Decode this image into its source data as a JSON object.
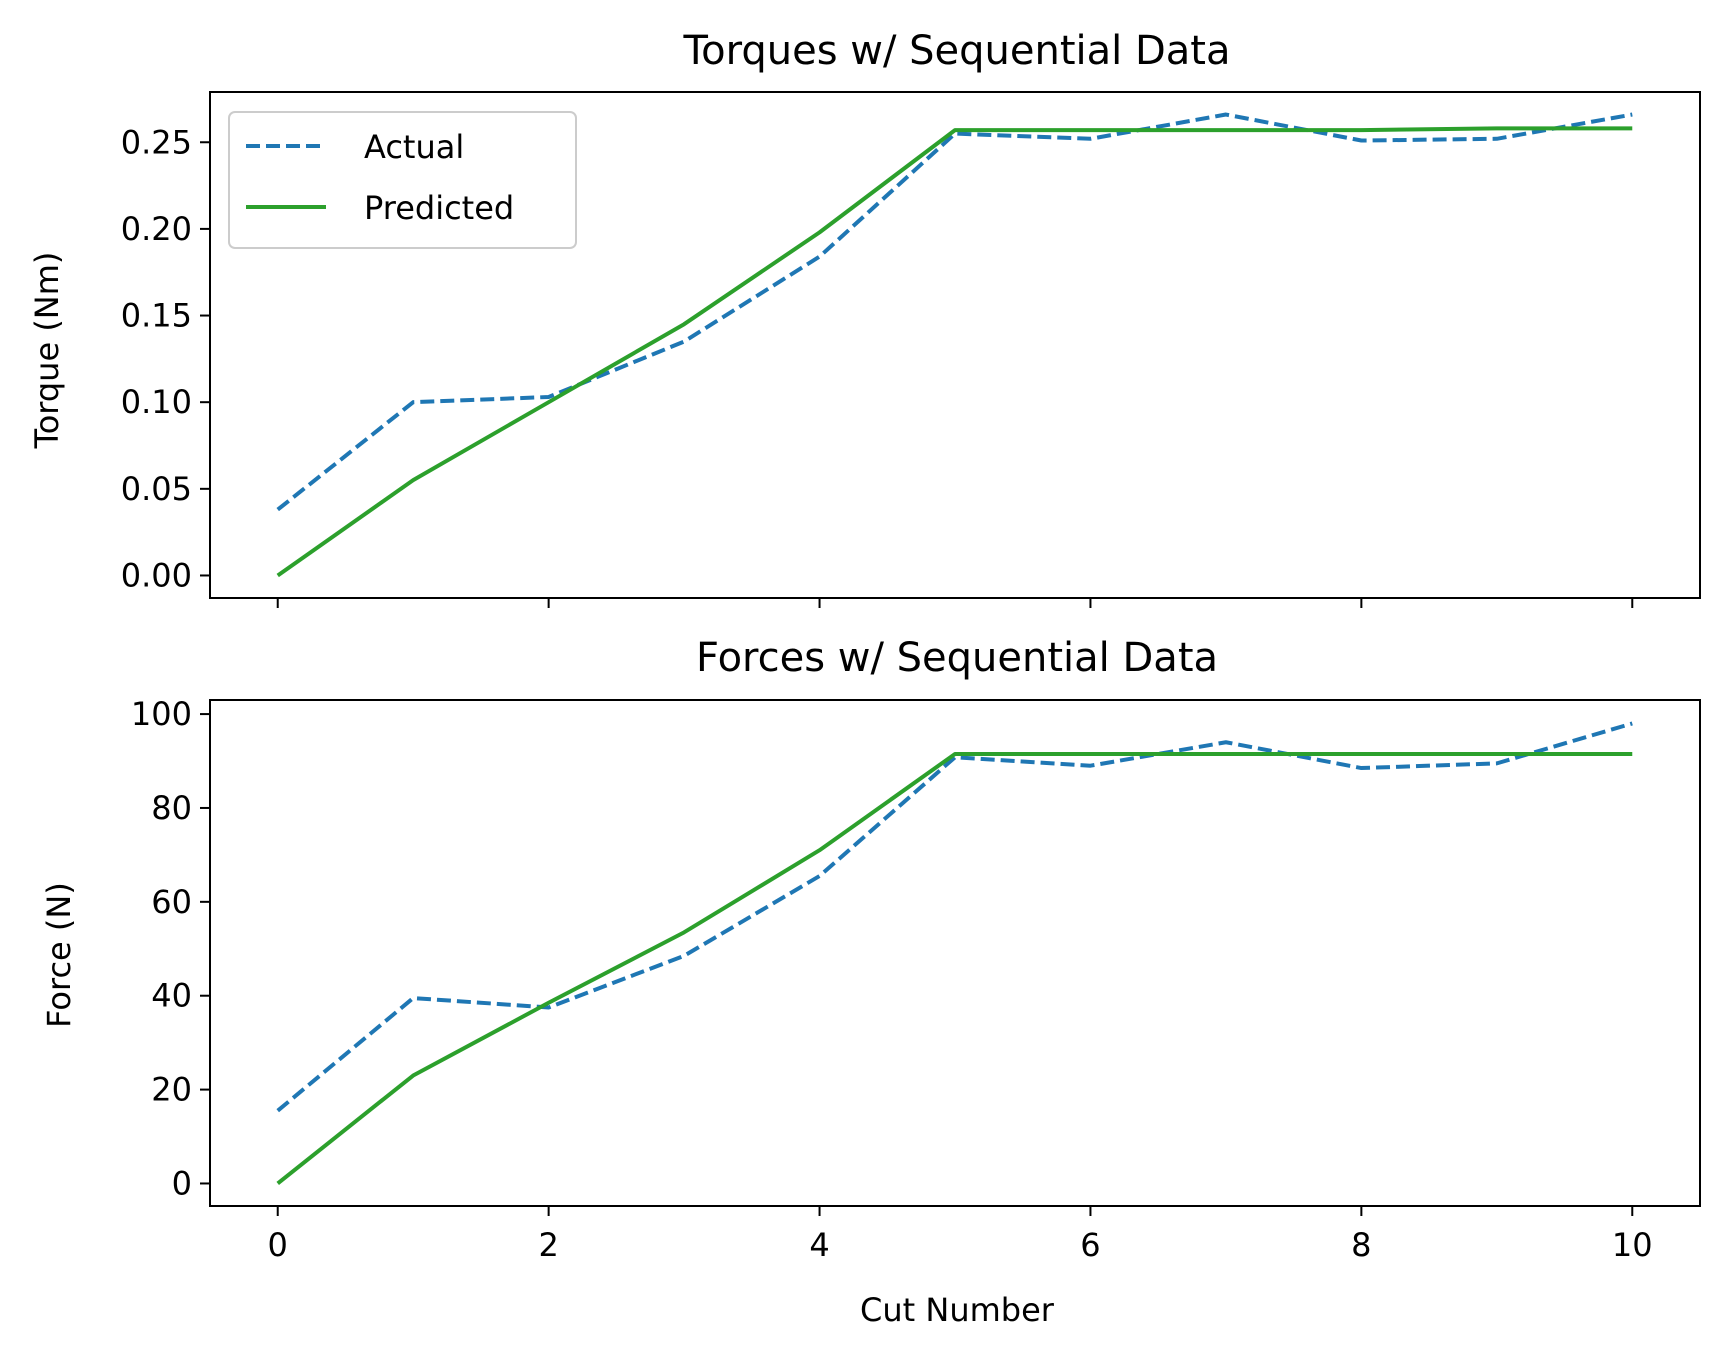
{
  "chart_data": [
    {
      "type": "line",
      "title": "Torques w/ Sequential Data",
      "xlabel": "",
      "ylabel": "Torque (Nm)",
      "x": [
        0,
        1,
        2,
        3,
        4,
        5,
        6,
        7,
        8,
        9,
        10
      ],
      "xlim": [
        -0.5,
        10.5
      ],
      "ylim": [
        -0.013,
        0.279
      ],
      "xticks": [
        0,
        2,
        4,
        6,
        8,
        10
      ],
      "xtick_labels": [
        "",
        "",
        "",
        "",
        "",
        ""
      ],
      "yticks": [
        0.0,
        0.05,
        0.1,
        0.15,
        0.2,
        0.25
      ],
      "ytick_labels": [
        "0.00",
        "0.05",
        "0.10",
        "0.15",
        "0.20",
        "0.25"
      ],
      "grid": false,
      "legend": {
        "placement": "upper-left",
        "entries": [
          "Actual",
          "Predicted"
        ]
      },
      "series": [
        {
          "name": "Actual",
          "style": "dashed",
          "color": "#1f77b4",
          "values": [
            0.038,
            0.1,
            0.103,
            0.135,
            0.184,
            0.255,
            0.252,
            0.266,
            0.251,
            0.252,
            0.266
          ]
        },
        {
          "name": "Predicted",
          "style": "solid",
          "color": "#2ca02c",
          "values": [
            0.0,
            0.055,
            0.1,
            0.145,
            0.198,
            0.257,
            0.257,
            0.257,
            0.257,
            0.258,
            0.258
          ]
        }
      ]
    },
    {
      "type": "line",
      "title": "Forces w/ Sequential Data",
      "xlabel": "Cut Number",
      "ylabel": "Force (N)",
      "x": [
        0,
        1,
        2,
        3,
        4,
        5,
        6,
        7,
        8,
        9,
        10
      ],
      "xlim": [
        -0.5,
        10.5
      ],
      "ylim": [
        -4.8,
        103.0
      ],
      "xticks": [
        0,
        2,
        4,
        6,
        8,
        10
      ],
      "xtick_labels": [
        "0",
        "2",
        "4",
        "6",
        "8",
        "10"
      ],
      "yticks": [
        0,
        20,
        40,
        60,
        80,
        100
      ],
      "ytick_labels": [
        "0",
        "20",
        "40",
        "60",
        "80",
        "100"
      ],
      "grid": false,
      "series": [
        {
          "name": "Actual",
          "style": "dashed",
          "color": "#1f77b4",
          "values": [
            15.5,
            39.5,
            37.5,
            48.5,
            65.5,
            90.8,
            89.0,
            94.0,
            88.5,
            89.5,
            98.0
          ]
        },
        {
          "name": "Predicted",
          "style": "solid",
          "color": "#2ca02c",
          "values": [
            0.0,
            23.0,
            38.5,
            53.5,
            71.0,
            91.5,
            91.5,
            91.5,
            91.5,
            91.5,
            91.5
          ]
        }
      ]
    }
  ]
}
